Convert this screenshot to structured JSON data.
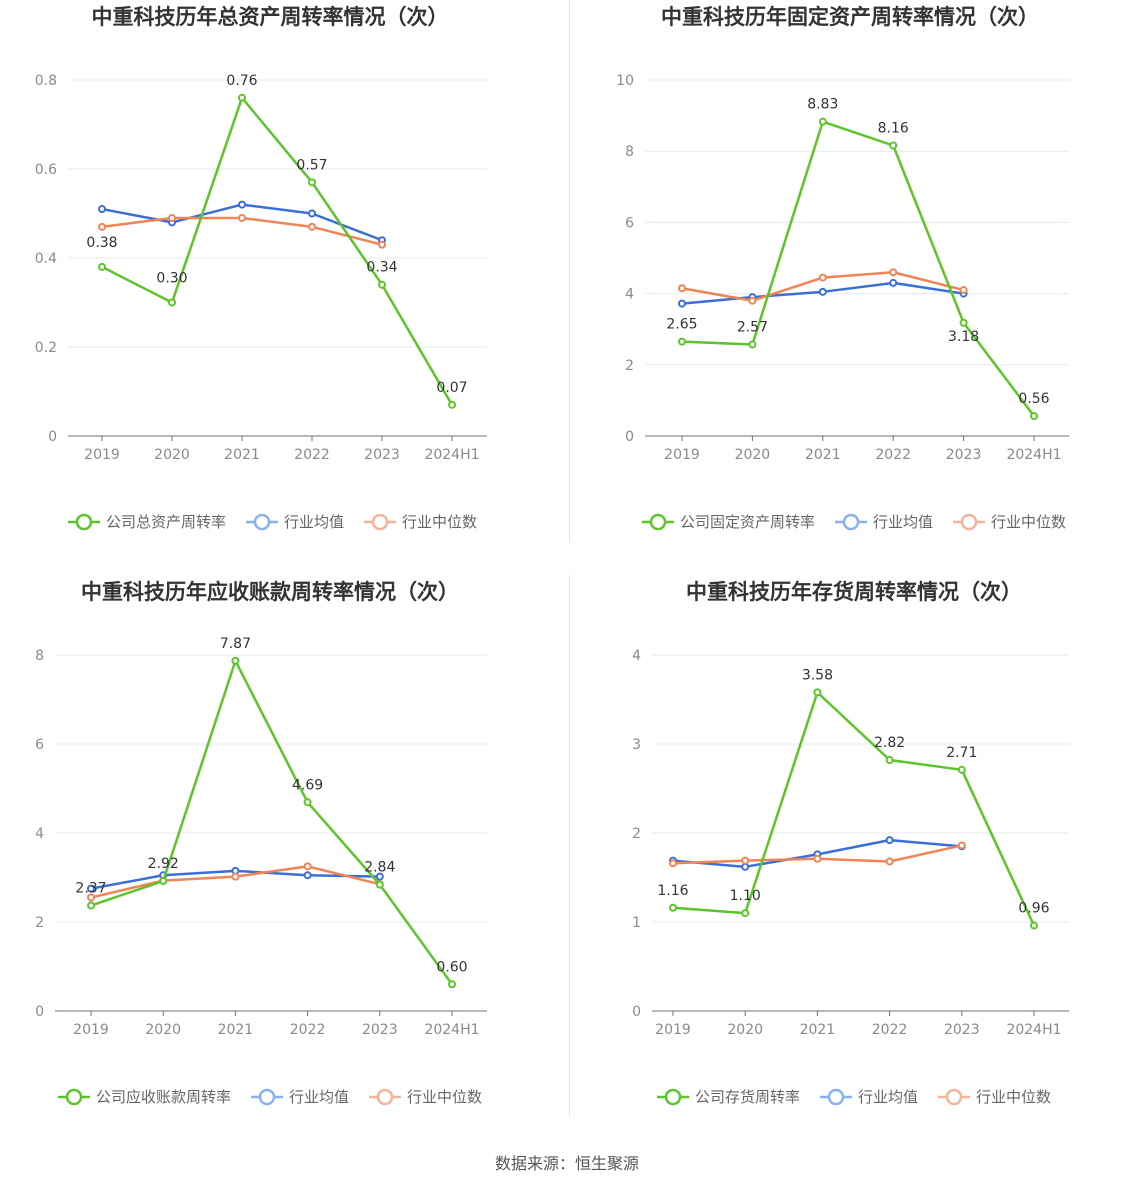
{
  "source_text": "数据来源：恒生聚源",
  "chart_data": [
    {
      "type": "line",
      "title": "中重科技历年总资产周转率情况（次）",
      "categories": [
        "2019",
        "2020",
        "2021",
        "2022",
        "2023",
        "2024H1"
      ],
      "ylim": [
        0,
        0.8
      ],
      "yticks": [
        0,
        0.2,
        0.4,
        0.6,
        0.8
      ],
      "ytick_labels": [
        "0",
        "0.2",
        "0.4",
        "0.6",
        "0.8"
      ],
      "series": [
        {
          "name": "公司总资产周转率",
          "color": "#5cc52a",
          "values": [
            0.38,
            0.3,
            0.76,
            0.57,
            0.34,
            0.07
          ],
          "labels": [
            "0.38",
            "0.30",
            "0.76",
            "0.57",
            "0.34",
            "0.07"
          ]
        },
        {
          "name": "行业均值",
          "color": "#3a6fd8",
          "values": [
            0.51,
            0.48,
            0.52,
            0.5,
            0.44,
            null
          ]
        },
        {
          "name": "行业中位数",
          "color": "#f08455",
          "values": [
            0.47,
            0.49,
            0.49,
            0.47,
            0.43,
            null
          ]
        }
      ]
    },
    {
      "type": "line",
      "title": "中重科技历年固定资产周转率情况（次）",
      "categories": [
        "2019",
        "2020",
        "2021",
        "2022",
        "2023",
        "2024H1"
      ],
      "ylim": [
        0,
        10
      ],
      "yticks": [
        0,
        2,
        4,
        6,
        8,
        10
      ],
      "ytick_labels": [
        "0",
        "2",
        "4",
        "6",
        "8",
        "10"
      ],
      "series": [
        {
          "name": "公司固定资产周转率",
          "color": "#5cc52a",
          "values": [
            2.65,
            2.57,
            8.83,
            8.16,
            3.18,
            0.56
          ],
          "labels": [
            "2.65",
            "2.57",
            "8.83",
            "8.16",
            "3.18",
            "0.56"
          ]
        },
        {
          "name": "行业均值",
          "color": "#3a6fd8",
          "values": [
            3.72,
            3.9,
            4.05,
            4.3,
            4.0,
            null
          ]
        },
        {
          "name": "行业中位数",
          "color": "#f08455",
          "values": [
            4.15,
            3.8,
            4.45,
            4.6,
            4.1,
            null
          ]
        }
      ]
    },
    {
      "type": "line",
      "title": "中重科技历年应收账款周转率情况（次）",
      "categories": [
        "2019",
        "2020",
        "2021",
        "2022",
        "2023",
        "2024H1"
      ],
      "ylim": [
        0,
        8
      ],
      "yticks": [
        0,
        2,
        4,
        6,
        8
      ],
      "ytick_labels": [
        "0",
        "2",
        "4",
        "6",
        "8"
      ],
      "series": [
        {
          "name": "公司应收账款周转率",
          "color": "#5cc52a",
          "values": [
            2.37,
            2.92,
            7.87,
            4.69,
            2.84,
            0.6
          ],
          "labels": [
            "2.37",
            "2.92",
            "7.87",
            "4.69",
            "2.84",
            "0.60"
          ]
        },
        {
          "name": "行业均值",
          "color": "#3a6fd8",
          "values": [
            2.75,
            3.05,
            3.15,
            3.05,
            3.02,
            null
          ]
        },
        {
          "name": "行业中位数",
          "color": "#f08455",
          "values": [
            2.55,
            2.93,
            3.02,
            3.25,
            2.85,
            null
          ]
        }
      ]
    },
    {
      "type": "line",
      "title": "中重科技历年存货周转率情况（次）",
      "categories": [
        "2019",
        "2020",
        "2021",
        "2022",
        "2023",
        "2024H1"
      ],
      "ylim": [
        0,
        4
      ],
      "yticks": [
        0,
        1,
        2,
        3,
        4
      ],
      "ytick_labels": [
        "0",
        "1",
        "2",
        "3",
        "4"
      ],
      "series": [
        {
          "name": "公司存货周转率",
          "color": "#5cc52a",
          "values": [
            1.16,
            1.1,
            3.58,
            2.82,
            2.71,
            0.96
          ],
          "labels": [
            "1.16",
            "1.10",
            "3.58",
            "2.82",
            "2.71",
            "0.96"
          ]
        },
        {
          "name": "行业均值",
          "color": "#3a6fd8",
          "values": [
            1.69,
            1.62,
            1.76,
            1.92,
            1.85,
            null
          ]
        },
        {
          "name": "行业中位数",
          "color": "#f08455",
          "values": [
            1.66,
            1.69,
            1.71,
            1.68,
            1.86,
            null
          ]
        }
      ]
    }
  ]
}
